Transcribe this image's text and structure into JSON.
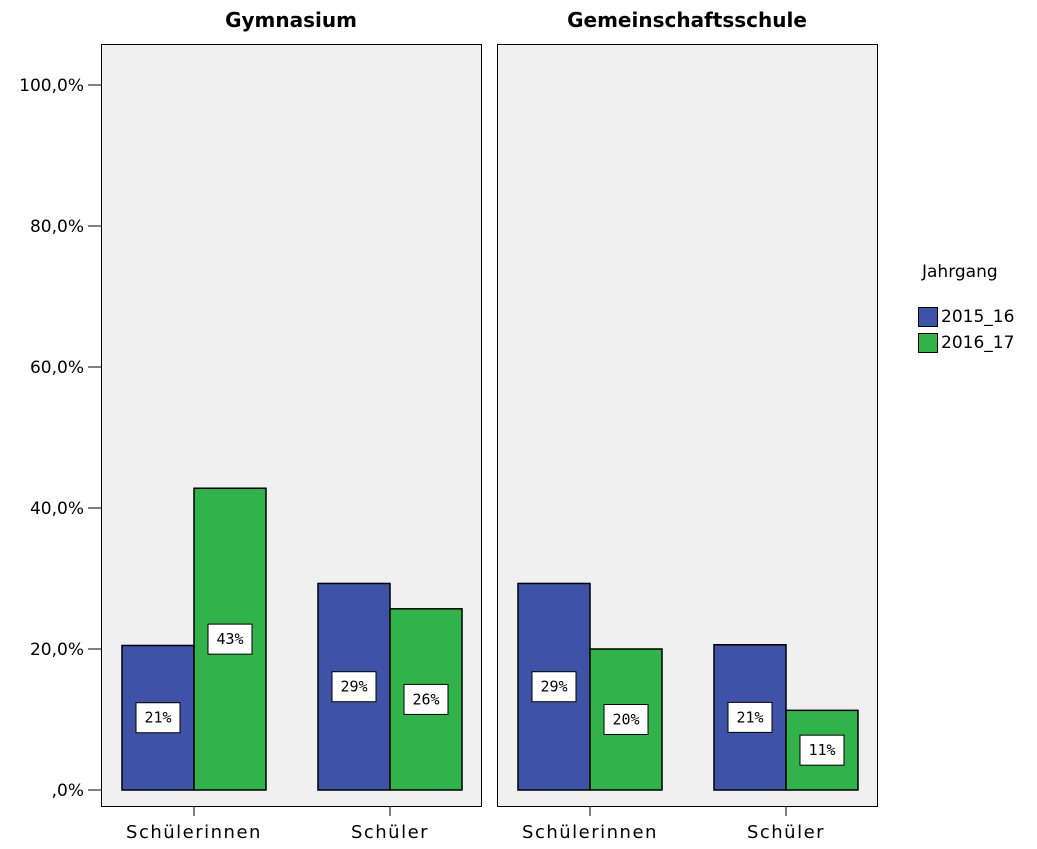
{
  "chart_data": {
    "type": "bar",
    "ylim": [
      0,
      100
    ],
    "yticks": [
      {
        "value": 0,
        "label": ",0%"
      },
      {
        "value": 20,
        "label": "20,0%"
      },
      {
        "value": 40,
        "label": "40,0%"
      },
      {
        "value": 60,
        "label": "60,0%"
      },
      {
        "value": 80,
        "label": "80,0%"
      },
      {
        "value": 100,
        "label": "100,0%"
      }
    ],
    "grid": false,
    "legend": {
      "title": "Jahrgang",
      "placement": "right",
      "entries": [
        {
          "name": "2015_16",
          "color": "#3e53a8"
        },
        {
          "name": "2016_17",
          "color": "#32b24a"
        }
      ]
    },
    "panels": [
      {
        "title": "Gymnasium",
        "categories": [
          "Schülerinnen",
          "Schüler"
        ],
        "series": [
          {
            "name": "2015_16",
            "values": [
              20.5,
              29.3
            ],
            "labels": [
              "21%",
              "29%"
            ]
          },
          {
            "name": "2016_17",
            "values": [
              42.8,
              25.7
            ],
            "labels": [
              "43%",
              "26%"
            ]
          }
        ]
      },
      {
        "title": "Gemeinschaftsschule",
        "categories": [
          "Schülerinnen",
          "Schüler"
        ],
        "series": [
          {
            "name": "2015_16",
            "values": [
              29.3,
              20.6
            ],
            "labels": [
              "29%",
              "21%"
            ]
          },
          {
            "name": "2016_17",
            "values": [
              20.0,
              11.3
            ],
            "labels": [
              "20%",
              "11%"
            ]
          }
        ]
      }
    ]
  }
}
